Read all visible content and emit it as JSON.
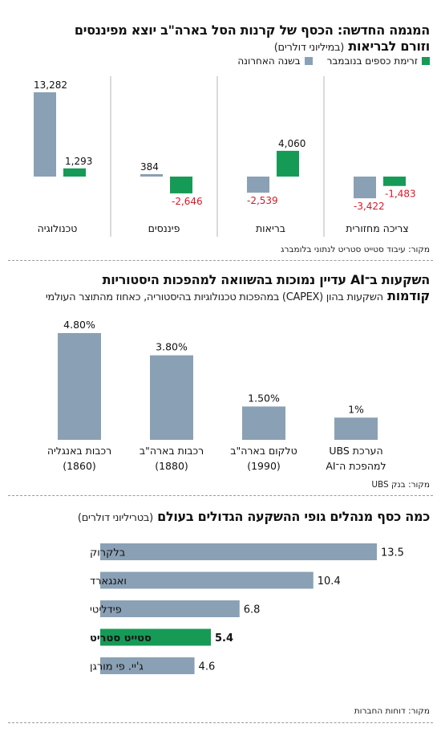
{
  "colors": {
    "gray": "#8aa0b5",
    "green": "#169b57",
    "red": "#d7192a",
    "text": "#111111"
  },
  "chart1": {
    "title_a": "המגמה החדשה: הכסף של קרנות הסל בארה\"ב יוצא מפיננסים",
    "title_b": "וזורם לבריאות",
    "subtitle": "(במיליוני דולרים)",
    "legend_green": "זרימת כספים בנובמבר",
    "legend_gray": "בשנה האחרונה",
    "source": "מקור: עיבוד סטייט סטריט לנתוני בלומברג"
  },
  "chart2": {
    "title_a": "השקעות ב־AI עדיין נמוכות בהשוואה למהפכות היסטוריות",
    "title_b": "קודמות",
    "subtitle": "השקעות בהון (CAPEX) במהפכות טכנולוגיות בהיסטוריה, כאחוז מהתוצר העולמי",
    "source": "מקור: בנק UBS"
  },
  "chart3": {
    "title": "כמה כסף מנהלים גופי ההשקעה הגדולים בעולם",
    "subtitle": "(בטריליוני דולרים)",
    "source": "מקור: דוחות החברות"
  },
  "chart_data": [
    {
      "type": "bar",
      "categories": [
        "טכנולוגיה",
        "פיננסים",
        "בריאות",
        "צריכה מחזורית"
      ],
      "series": [
        {
          "name": "בשנה האחרונה",
          "values": [
            13282,
            384,
            -2539,
            -3422
          ],
          "labels": [
            "13,282",
            "384",
            "-2,539",
            "-3,422"
          ]
        },
        {
          "name": "זרימת כספים בנובמבר",
          "values": [
            1293,
            -2646,
            4060,
            -1483
          ],
          "labels": [
            "1,293",
            "-2,646",
            "4,060",
            "-1,483"
          ]
        }
      ],
      "title": "המגמה החדשה: הכסף של קרנות הסל בארה\"ב יוצא מפיננסים וזורם לבריאות",
      "ylabel": "(במיליוני דולרים)"
    },
    {
      "type": "bar",
      "categories": [
        {
          "line1": "רכבות באנגליה",
          "line2": "(1860)"
        },
        {
          "line1": "רכבות בארה\"ב",
          "line2": "(1880)"
        },
        {
          "line1": "טלקום בארה\"ב",
          "line2": "(1990)"
        },
        {
          "line1": "הערכת UBS",
          "line2": "למהפכת ה־AI"
        }
      ],
      "values": [
        4.8,
        3.8,
        1.5,
        1.0
      ],
      "value_labels": [
        "4.80%",
        "3.80%",
        "1.50%",
        "1%"
      ],
      "title": "השקעות ב־AI עדיין נמוכות בהשוואה למהפכות היסטוריות קודמות"
    },
    {
      "type": "bar",
      "orientation": "horizontal",
      "categories": [
        "בלקרוק",
        "ואנגארד",
        "פידליטי",
        "סטייט סטריט",
        "ג'יי. פי מורגן"
      ],
      "values": [
        13.5,
        10.4,
        6.8,
        5.4,
        4.6
      ],
      "value_labels": [
        "13.5",
        "10.4",
        "6.8",
        "5.4",
        "4.6"
      ],
      "highlight": "סטייט סטריט",
      "title": "כמה כסף מנהלים גופי ההשקעה הגדולים בעולם",
      "ylabel": "(בטריליוני דולרים)"
    }
  ]
}
